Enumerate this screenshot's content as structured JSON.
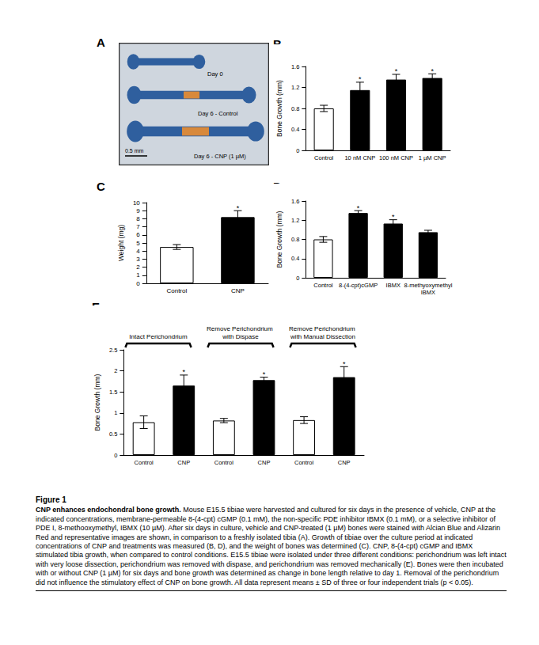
{
  "image_panel": {
    "panel": "A",
    "labels": [
      "Day 0",
      "Day 6 - Control",
      "Day 6 - CNP (1 µM)"
    ],
    "scale_bar": "0.5 mm"
  },
  "chart_data": [
    {
      "panel": "B",
      "type": "bar",
      "y_label": "Bone Growth (mm)",
      "categories": [
        "Control",
        "10 nM CNP",
        "100 nM CNP",
        "1 µM CNP"
      ],
      "values": [
        0.8,
        1.15,
        1.35,
        1.38
      ],
      "errors": [
        0.06,
        0.15,
        0.1,
        0.08
      ],
      "significance": [
        null,
        "*",
        "*",
        "*"
      ],
      "colors": [
        "#ffffff",
        "#000000",
        "#000000",
        "#000000"
      ],
      "ylim": [
        0,
        1.6
      ],
      "yticks": [
        0,
        0.4,
        0.8,
        1.2,
        1.6
      ],
      "grid": false
    },
    {
      "panel": "C",
      "type": "bar",
      "y_label": "Weight (mg)",
      "categories": [
        "Control",
        "CNP"
      ],
      "values": [
        4.5,
        8.2
      ],
      "errors": [
        0.3,
        0.8
      ],
      "significance": [
        null,
        "*"
      ],
      "colors": [
        "#ffffff",
        "#000000"
      ],
      "ylim": [
        0,
        10
      ],
      "yticks": [
        0,
        1,
        2,
        3,
        4,
        5,
        6,
        7,
        8,
        9,
        10
      ],
      "grid": false
    },
    {
      "panel": "D",
      "type": "bar",
      "y_label": "Bone Growth (mm)",
      "categories": [
        "Control",
        "8-(4-cpt)cGMP",
        "IBMX",
        "8-methyoxymethyl IBMX"
      ],
      "values": [
        0.8,
        1.35,
        1.13,
        0.95
      ],
      "errors": [
        0.06,
        0.05,
        0.08,
        0.04
      ],
      "significance": [
        null,
        "*",
        "*",
        null
      ],
      "colors": [
        "#ffffff",
        "#000000",
        "#000000",
        "#000000"
      ],
      "ylim": [
        0,
        1.6
      ],
      "yticks": [
        0,
        0.4,
        0.8,
        1.2,
        1.6
      ],
      "grid": false
    },
    {
      "panel": "E",
      "type": "bar",
      "y_label": "Bone Growth (mm)",
      "categories": [
        "Control",
        "CNP",
        "Control",
        "CNP",
        "Control",
        "CNP"
      ],
      "category_groups": [
        "Intact Perichondrium",
        "Intact Perichondrium",
        "Remove Perichondrium with Dispase",
        "Remove Perichondrium with Dispase",
        "Remove Perichondrium with Manual Dissection",
        "Remove Perichondrium with Manual Dissection"
      ],
      "values": [
        0.78,
        1.65,
        0.82,
        1.78,
        0.83,
        1.85
      ],
      "errors": [
        0.15,
        0.25,
        0.05,
        0.07,
        0.08,
        0.25
      ],
      "significance": [
        null,
        "*",
        null,
        "*",
        null,
        "*"
      ],
      "colors": [
        "#ffffff",
        "#000000",
        "#ffffff",
        "#000000",
        "#ffffff",
        "#000000"
      ],
      "ylim": [
        0,
        2.5
      ],
      "yticks": [
        0,
        0.5,
        1,
        1.5,
        2,
        2.5
      ],
      "grid": false
    }
  ],
  "caption": {
    "title": "Figure 1",
    "heading": "CNP enhances endochondral bone growth.",
    "text": "Mouse E15.5 tibiae were harvested and cultured for six days in the presence of vehicle, CNP at the indicated concentrations, membrane-permeable 8-(4-cpt) cGMP (0.1 mM), the non-specific PDE inhibitor IBMX (0.1 mM), or a selective inhibitor of PDE I, 8-methooxymethyl, IBMX (10 µM). After six days in culture, vehicle and CNP-treated (1 µM) bones were stained with Alcian Blue and Alizarin Red and representative images are shown, in comparison to a freshly isolated tibia (A). Growth of tibiae over the culture period at indicated concentrations of CNP and treatments was measured (B, D), and the weight of bones was determined (C). CNP, 8-(4-cpt) cGMP and IBMX stimulated tibia growth, when compared to control conditions. E15.5 tibiae were isolated under three different conditions: perichondrium was left intact with very loose dissection, perichondrium was removed with dispase, and perichondrium was removed mechanically (E). Bones were then incubated with or without CNP (1 µM) for six days and bone growth was determined as change in bone length relative to day 1. Removal of the perichondrium did not influence the stimulatory effect of CNP on bone growth. All data represent means ± SD of three or four independent trials (p < 0.05)."
  }
}
